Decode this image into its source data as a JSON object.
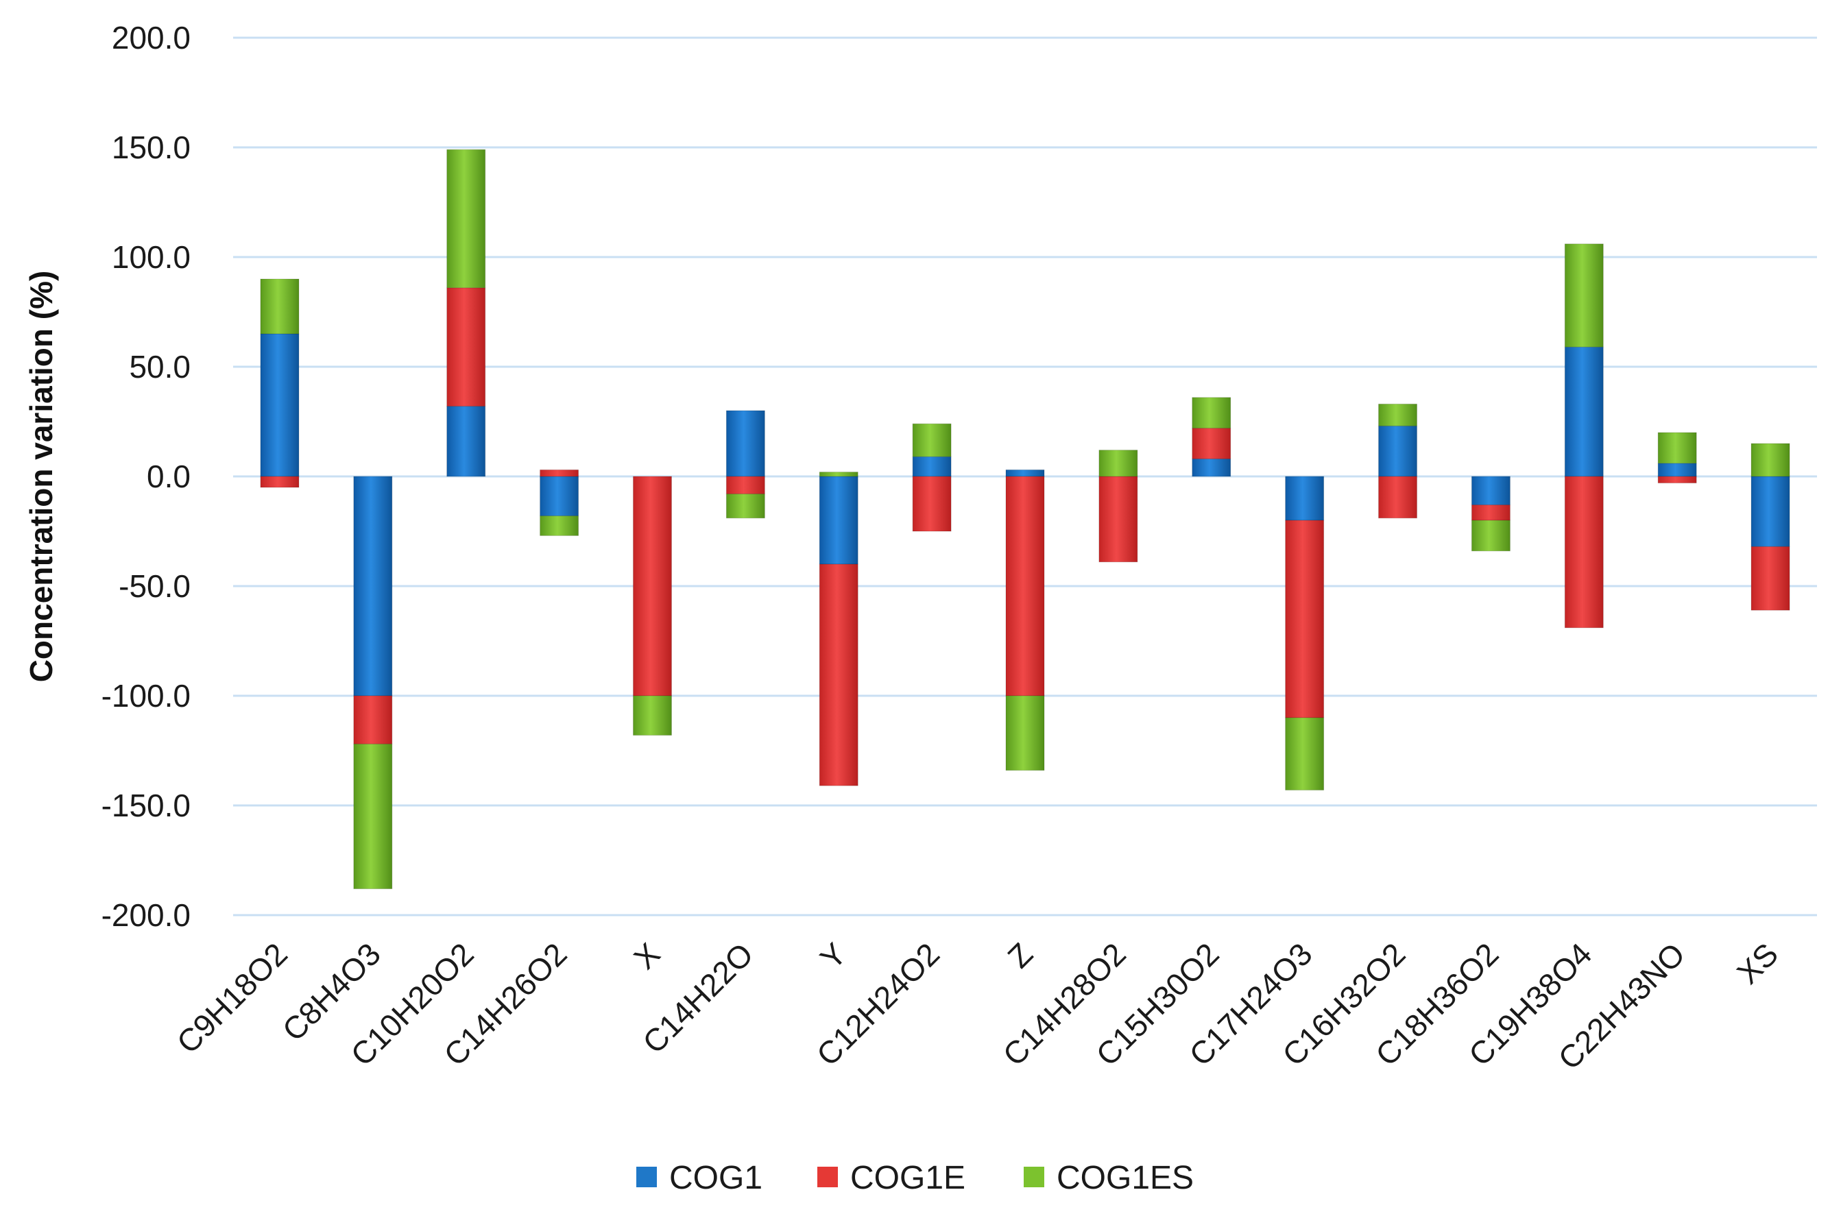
{
  "chart_data": {
    "type": "bar",
    "stacked": true,
    "title": "",
    "xlabel": "",
    "ylabel": "Concentration variation (%)",
    "ylim": [
      -200,
      200
    ],
    "ytick_values": [
      200,
      150,
      100,
      50,
      0,
      -50,
      -100,
      -150,
      -200
    ],
    "ytick_labels": [
      "200.0",
      "150.0",
      "100.0",
      "50.0",
      "0.0",
      "-50.0",
      "-100.0",
      "-150.0",
      "-200.0"
    ],
    "grid": true,
    "legend_position": "bottom",
    "categories": [
      "C9H18O2",
      "C8H4O3",
      "C10H20O2",
      "C14H26O2",
      "X",
      "C14H22O",
      "Y",
      "C12H24O2",
      "Z",
      "C14H28O2",
      "C15H30O2",
      "C17H24O3",
      "C16H32O2",
      "C18H36O2",
      "C19H38O4",
      "C22H43NO",
      "XS"
    ],
    "series": [
      {
        "name": "COG1",
        "color": "#1f78c8",
        "values": [
          65,
          -100,
          32,
          -18,
          0,
          30,
          -40,
          9,
          3,
          0,
          8,
          -20,
          23,
          -13,
          59,
          6,
          -32
        ]
      },
      {
        "name": "COG1E",
        "color": "#e53935",
        "values": [
          -5,
          -22,
          54,
          3,
          -100,
          -8,
          -101,
          -25,
          -100,
          -39,
          14,
          -90,
          -19,
          -7,
          -69,
          -3,
          -29
        ]
      },
      {
        "name": "COG1ES",
        "color": "#7cc22e",
        "values": [
          25,
          -66,
          63,
          -9,
          -18,
          -11,
          2,
          15,
          -34,
          12,
          14,
          -33,
          10,
          -14,
          47,
          14,
          15
        ]
      }
    ]
  }
}
